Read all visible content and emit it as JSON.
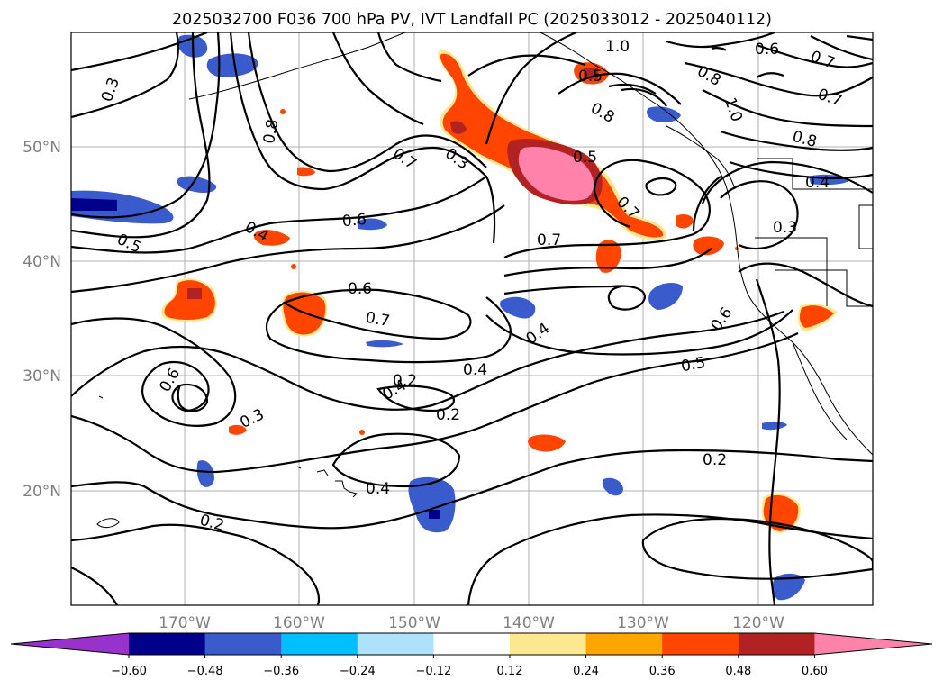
{
  "title": "2025032700 F036 700 hPa PV, IVT Landfall PC (2025033012 - 2025040112)",
  "lat_labels": [
    "50°N",
    "40°N",
    "30°N",
    "20°N"
  ],
  "lon_labels": [
    "170°W",
    "160°W",
    "150°W",
    "140°W",
    "130°W",
    "120°W"
  ],
  "colorbar": {
    "colors": [
      "#9932CC",
      "#00008B",
      "#3A5BCC",
      "#00BFFF",
      "#ADE2FA",
      "#FFFFFF",
      "#FCE890",
      "#FFA500",
      "#FF4500",
      "#B22222",
      "#FF82AB"
    ],
    "tick_labels": [
      "−0.60",
      "−0.48",
      "−0.36",
      "−0.24",
      "−0.12",
      "0.12",
      "0.24",
      "0.36",
      "0.48",
      "0.60"
    ]
  },
  "contour_labels": [
    "0.3",
    "0.8",
    "0.4",
    "0.5",
    "0.6",
    "0.7",
    "0.3",
    "0.5",
    "1.0",
    "0.6",
    "0.7",
    "0.8",
    "1.0",
    "0.7",
    "0.8",
    "0.4",
    "0.3",
    "0.5",
    "0.8",
    "0.7",
    "0.7",
    "0.6",
    "0.4",
    "0.6",
    "0.7",
    "0.4",
    "0.4",
    "0.2",
    "0.2",
    "0.5",
    "0.6",
    "0.3",
    "0.2",
    "0.4",
    "0.2"
  ]
}
